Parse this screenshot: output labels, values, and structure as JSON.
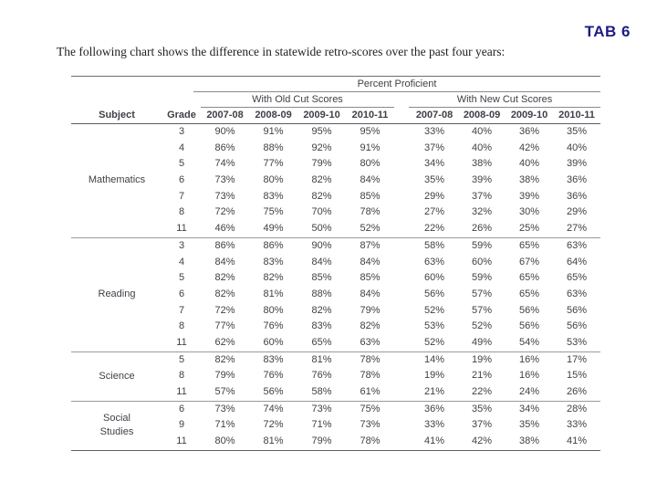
{
  "page": {
    "tab_label": "TAB 6",
    "caption": "The following chart shows the difference in statewide retro-scores over the past four years:"
  },
  "colors": {
    "tab_accent": "#1c1c87",
    "table_text": "#3f3f46"
  },
  "table": {
    "title": "Percent Proficient",
    "subject_header": "Subject",
    "grade_header": "Grade",
    "group_headers": {
      "old": "With Old Cut Scores",
      "new": "With New Cut Scores"
    },
    "years": [
      "2007-08",
      "2008-09",
      "2009-10",
      "2010-11"
    ],
    "groups": [
      {
        "subject": "Mathematics",
        "rows": [
          {
            "grade": "3",
            "old": [
              "90%",
              "91%",
              "95%",
              "95%"
            ],
            "new": [
              "33%",
              "40%",
              "36%",
              "35%"
            ]
          },
          {
            "grade": "4",
            "old": [
              "86%",
              "88%",
              "92%",
              "91%"
            ],
            "new": [
              "37%",
              "40%",
              "42%",
              "40%"
            ]
          },
          {
            "grade": "5",
            "old": [
              "74%",
              "77%",
              "79%",
              "80%"
            ],
            "new": [
              "34%",
              "38%",
              "40%",
              "39%"
            ]
          },
          {
            "grade": "6",
            "old": [
              "73%",
              "80%",
              "82%",
              "84%"
            ],
            "new": [
              "35%",
              "39%",
              "38%",
              "36%"
            ]
          },
          {
            "grade": "7",
            "old": [
              "73%",
              "83%",
              "82%",
              "85%"
            ],
            "new": [
              "29%",
              "37%",
              "39%",
              "36%"
            ]
          },
          {
            "grade": "8",
            "old": [
              "72%",
              "75%",
              "70%",
              "78%"
            ],
            "new": [
              "27%",
              "32%",
              "30%",
              "29%"
            ]
          },
          {
            "grade": "11",
            "old": [
              "46%",
              "49%",
              "50%",
              "52%"
            ],
            "new": [
              "22%",
              "26%",
              "25%",
              "27%"
            ]
          }
        ]
      },
      {
        "subject": "Reading",
        "rows": [
          {
            "grade": "3",
            "old": [
              "86%",
              "86%",
              "90%",
              "87%"
            ],
            "new": [
              "58%",
              "59%",
              "65%",
              "63%"
            ]
          },
          {
            "grade": "4",
            "old": [
              "84%",
              "83%",
              "84%",
              "84%"
            ],
            "new": [
              "63%",
              "60%",
              "67%",
              "64%"
            ]
          },
          {
            "grade": "5",
            "old": [
              "82%",
              "82%",
              "85%",
              "85%"
            ],
            "new": [
              "60%",
              "59%",
              "65%",
              "65%"
            ]
          },
          {
            "grade": "6",
            "old": [
              "82%",
              "81%",
              "88%",
              "84%"
            ],
            "new": [
              "56%",
              "57%",
              "65%",
              "63%"
            ]
          },
          {
            "grade": "7",
            "old": [
              "72%",
              "80%",
              "82%",
              "79%"
            ],
            "new": [
              "52%",
              "57%",
              "56%",
              "56%"
            ]
          },
          {
            "grade": "8",
            "old": [
              "77%",
              "76%",
              "83%",
              "82%"
            ],
            "new": [
              "53%",
              "52%",
              "56%",
              "56%"
            ]
          },
          {
            "grade": "11",
            "old": [
              "62%",
              "60%",
              "65%",
              "63%"
            ],
            "new": [
              "52%",
              "49%",
              "54%",
              "53%"
            ]
          }
        ]
      },
      {
        "subject": "Science",
        "rows": [
          {
            "grade": "5",
            "old": [
              "82%",
              "83%",
              "81%",
              "78%"
            ],
            "new": [
              "14%",
              "19%",
              "16%",
              "17%"
            ]
          },
          {
            "grade": "8",
            "old": [
              "79%",
              "76%",
              "76%",
              "78%"
            ],
            "new": [
              "19%",
              "21%",
              "16%",
              "15%"
            ]
          },
          {
            "grade": "11",
            "old": [
              "57%",
              "56%",
              "58%",
              "61%"
            ],
            "new": [
              "21%",
              "22%",
              "24%",
              "26%"
            ]
          }
        ]
      },
      {
        "subject": "Social\nStudies",
        "rows": [
          {
            "grade": "6",
            "old": [
              "73%",
              "74%",
              "73%",
              "75%"
            ],
            "new": [
              "36%",
              "35%",
              "34%",
              "28%"
            ]
          },
          {
            "grade": "9",
            "old": [
              "71%",
              "72%",
              "71%",
              "73%"
            ],
            "new": [
              "33%",
              "37%",
              "35%",
              "33%"
            ]
          },
          {
            "grade": "11",
            "old": [
              "80%",
              "81%",
              "79%",
              "78%"
            ],
            "new": [
              "41%",
              "42%",
              "38%",
              "41%"
            ]
          }
        ]
      }
    ]
  }
}
